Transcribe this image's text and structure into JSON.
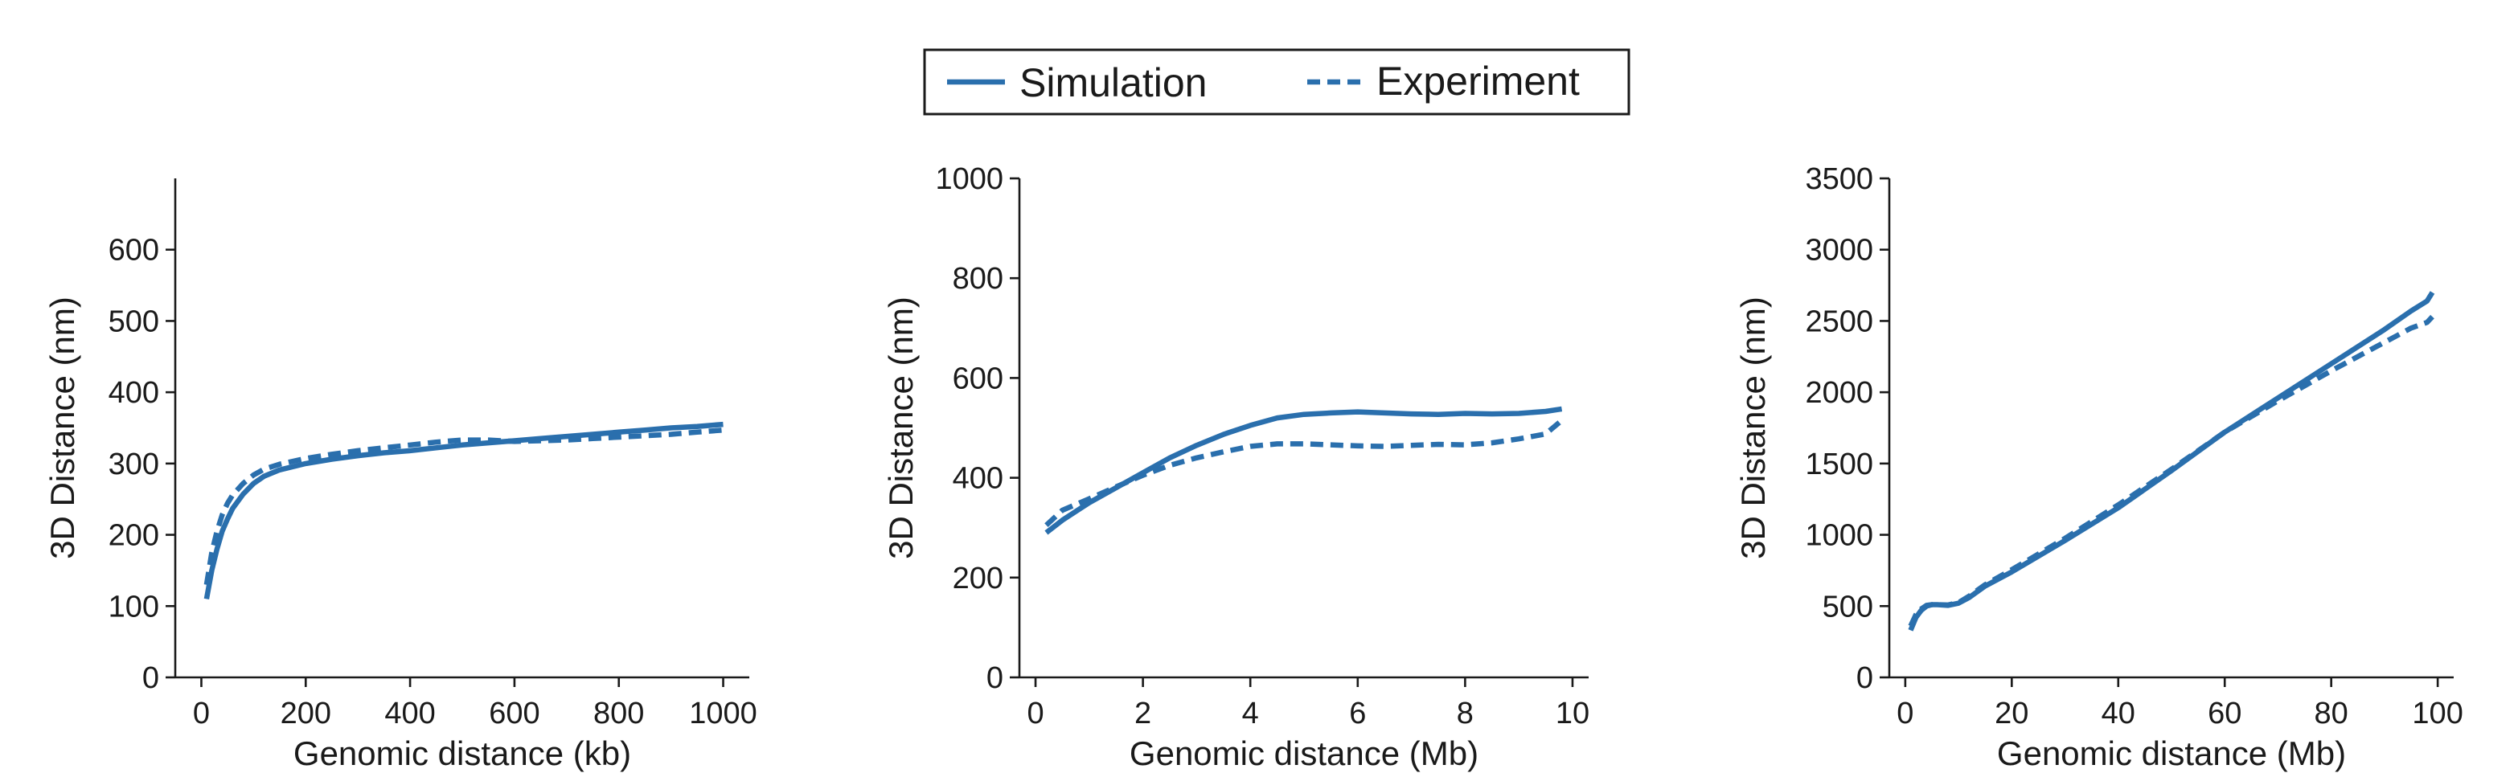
{
  "legend": {
    "items": [
      {
        "label": "Simulation",
        "style": "solid"
      },
      {
        "label": "Experiment",
        "style": "dashed"
      }
    ]
  },
  "colors": {
    "series": "#2a6fad",
    "axis": "#1a1a1a"
  },
  "chart_data": [
    {
      "type": "line",
      "xlabel": "Genomic distance (kb)",
      "ylabel": "3D Distance (nm)",
      "xlim": [
        -50,
        1050
      ],
      "ylim": [
        0,
        700
      ],
      "xticks": [
        0,
        200,
        400,
        600,
        800,
        1000
      ],
      "yticks": [
        0,
        100,
        200,
        300,
        400,
        500,
        600
      ],
      "grid": false,
      "series": [
        {
          "name": "Simulation",
          "style": "solid",
          "x": [
            10,
            20,
            30,
            40,
            50,
            60,
            80,
            100,
            120,
            150,
            200,
            250,
            300,
            350,
            400,
            450,
            500,
            550,
            600,
            650,
            700,
            750,
            800,
            850,
            900,
            950,
            1000
          ],
          "y": [
            110,
            150,
            180,
            205,
            222,
            237,
            257,
            272,
            282,
            291,
            300,
            306,
            311,
            315,
            318,
            322,
            326,
            329,
            332,
            335,
            338,
            341,
            344,
            347,
            350,
            352,
            355
          ]
        },
        {
          "name": "Experiment",
          "style": "dashed",
          "x": [
            10,
            20,
            30,
            40,
            50,
            60,
            80,
            100,
            120,
            150,
            200,
            250,
            300,
            350,
            400,
            450,
            500,
            550,
            600,
            650,
            700,
            750,
            800,
            850,
            900,
            950,
            1000
          ],
          "y": [
            130,
            175,
            205,
            228,
            244,
            256,
            272,
            284,
            292,
            299,
            307,
            313,
            318,
            322,
            326,
            330,
            333,
            333,
            331,
            332,
            333,
            335,
            337,
            339,
            341,
            344,
            347
          ]
        }
      ]
    },
    {
      "type": "line",
      "xlabel": "Genomic distance (Mb)",
      "ylabel": "3D Distance (nm)",
      "xlim": [
        -0.3,
        10.3
      ],
      "ylim": [
        0,
        1000
      ],
      "xticks": [
        0,
        2,
        4,
        6,
        8,
        10
      ],
      "yticks": [
        0,
        200,
        400,
        600,
        800,
        1000
      ],
      "grid": false,
      "series": [
        {
          "name": "Simulation",
          "style": "solid",
          "x": [
            0.2,
            0.5,
            1,
            1.5,
            2,
            2.5,
            3,
            3.5,
            4,
            4.5,
            5,
            5.5,
            6,
            6.5,
            7,
            7.5,
            8,
            8.5,
            9,
            9.5,
            9.8
          ],
          "y": [
            290,
            315,
            350,
            380,
            410,
            440,
            465,
            487,
            505,
            520,
            527,
            530,
            532,
            530,
            528,
            527,
            529,
            528,
            529,
            533,
            538
          ]
        },
        {
          "name": "Experiment",
          "style": "dashed",
          "x": [
            0.2,
            0.5,
            1,
            1.5,
            2,
            2.5,
            3,
            3.5,
            4,
            4.5,
            5,
            5.5,
            6,
            6.5,
            7,
            7.5,
            8,
            8.5,
            9,
            9.5,
            9.8
          ],
          "y": [
            305,
            335,
            358,
            382,
            405,
            425,
            440,
            452,
            463,
            468,
            468,
            466,
            464,
            463,
            465,
            467,
            466,
            470,
            478,
            488,
            515
          ]
        }
      ]
    },
    {
      "type": "line",
      "xlabel": "Genomic distance (Mb)",
      "ylabel": "3D Distance (nm)",
      "xlim": [
        -3,
        103
      ],
      "ylim": [
        0,
        3500
      ],
      "xticks": [
        0,
        20,
        40,
        60,
        80,
        100
      ],
      "yticks": [
        0,
        500,
        1000,
        1500,
        2000,
        2500,
        3000,
        3500
      ],
      "grid": false,
      "series": [
        {
          "name": "Simulation",
          "style": "solid",
          "x": [
            1,
            2,
            3,
            4,
            5,
            6,
            8,
            10,
            12,
            15,
            20,
            25,
            30,
            40,
            50,
            60,
            70,
            80,
            90,
            95,
            98,
            99
          ],
          "y": [
            330,
            420,
            470,
            500,
            510,
            510,
            505,
            520,
            560,
            640,
            740,
            850,
            960,
            1190,
            1450,
            1720,
            1960,
            2200,
            2440,
            2570,
            2640,
            2700
          ]
        },
        {
          "name": "Experiment",
          "style": "dashed",
          "x": [
            1,
            2,
            3,
            4,
            5,
            6,
            8,
            10,
            12,
            15,
            20,
            25,
            30,
            40,
            50,
            60,
            70,
            80,
            90,
            95,
            98,
            99
          ],
          "y": [
            360,
            440,
            480,
            505,
            510,
            510,
            508,
            525,
            570,
            650,
            755,
            865,
            975,
            1210,
            1460,
            1720,
            1940,
            2150,
            2350,
            2450,
            2490,
            2530
          ]
        }
      ]
    }
  ]
}
